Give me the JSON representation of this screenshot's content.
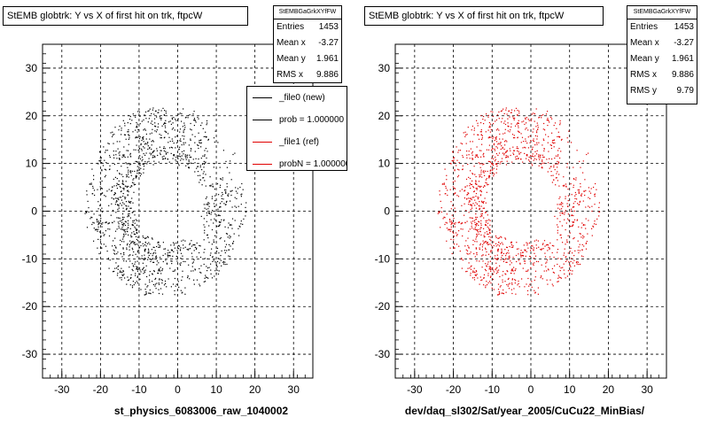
{
  "chart_data": [
    {
      "type": "scatter",
      "title": "StEMB globtrk: Y vs X of first hit on trk, ftpcW",
      "xlabel": "st_physics_6083006_raw_1040002",
      "ylabel": "",
      "xlim": [
        -35,
        35
      ],
      "ylim": [
        -35,
        35
      ],
      "grid": true,
      "xticks": [
        "-30",
        "-20",
        "-10",
        "0",
        "10",
        "20",
        "30"
      ],
      "yticks": [
        "-30",
        "-20",
        "-10",
        "0",
        "10",
        "20",
        "30"
      ],
      "marker_color": "#000000",
      "stats": {
        "header": "StEMBGaGrkXYfFW",
        "rows": [
          {
            "label": "Entries",
            "value": "1453"
          },
          {
            "label": "Mean x",
            "value": "-3.27"
          },
          {
            "label": "Mean y",
            "value": "1.961"
          },
          {
            "label": "RMS x",
            "value": "9.886"
          }
        ]
      },
      "legend": [
        {
          "label": "_file0 (new)",
          "color": "#000000"
        },
        {
          "label": "prob = 1.000000",
          "color": "#000000"
        },
        {
          "label": "_file1 (ref)",
          "color": "#e00000"
        },
        {
          "label": "probN = 1.000000",
          "color": "#e00000"
        }
      ],
      "entries": 1453
    },
    {
      "type": "scatter",
      "title": "StEMB globtrk: Y vs X of first hit on trk, ftpcW",
      "xlabel": "dev/daq_sl302/Sat/year_2005/CuCu22_MinBias/",
      "ylabel": "",
      "xlim": [
        -35,
        35
      ],
      "ylim": [
        -35,
        35
      ],
      "grid": true,
      "xticks": [
        "-30",
        "-20",
        "-10",
        "0",
        "10",
        "20",
        "30"
      ],
      "yticks": [
        "-30",
        "-20",
        "-10",
        "0",
        "10",
        "20",
        "30"
      ],
      "marker_color": "#e00000",
      "stats": {
        "header": "StEMBGaGrkXYfFW",
        "rows": [
          {
            "label": "Entries",
            "value": "1453"
          },
          {
            "label": "Mean x",
            "value": "-3.27"
          },
          {
            "label": "Mean y",
            "value": "1.961"
          },
          {
            "label": "RMS x",
            "value": "9.886"
          },
          {
            "label": "RMS y",
            "value": "9.79"
          }
        ]
      },
      "entries": 1453
    }
  ]
}
